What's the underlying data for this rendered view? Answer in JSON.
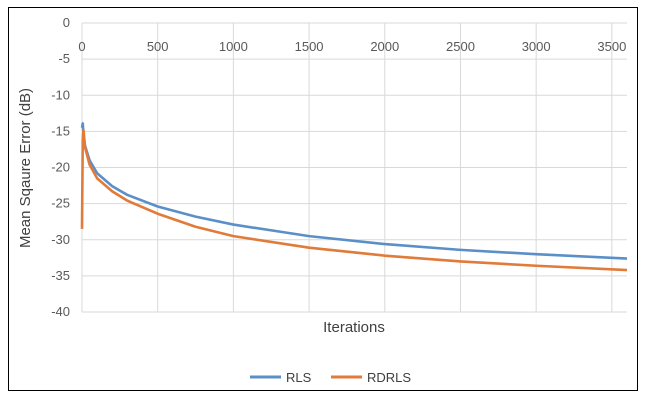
{
  "chart_data": {
    "type": "line",
    "title": "",
    "xlabel": "Iterations",
    "ylabel": "Mean Sqaure Error (dB)",
    "xlim": [
      0,
      3600
    ],
    "ylim": [
      -40,
      0
    ],
    "x_ticks": [
      "0",
      "500",
      "1000",
      "1500",
      "2000",
      "2500",
      "3000",
      "3500"
    ],
    "y_ticks": [
      "0",
      "-5",
      "-10",
      "-15",
      "-20",
      "-25",
      "-30",
      "-35",
      "-40"
    ],
    "x_axis_position": "top",
    "grid": true,
    "legend_position": "bottom",
    "series": [
      {
        "name": "RLS",
        "color": "#5B8FC8",
        "x": [
          0,
          5,
          10,
          20,
          50,
          100,
          200,
          300,
          500,
          750,
          1000,
          1500,
          2000,
          2500,
          3000,
          3600
        ],
        "y": [
          -14.5,
          -13.9,
          -15.5,
          -17.0,
          -19.0,
          -20.8,
          -22.6,
          -23.8,
          -25.4,
          -26.8,
          -27.9,
          -29.5,
          -30.6,
          -31.4,
          -32.0,
          -32.6
        ]
      },
      {
        "name": "RDRLS",
        "color": "#E07B39",
        "x": [
          0,
          5,
          10,
          20,
          50,
          100,
          200,
          300,
          500,
          750,
          1000,
          1500,
          2000,
          2500,
          3000,
          3600
        ],
        "y": [
          -28.5,
          -16.0,
          -14.8,
          -17.2,
          -19.6,
          -21.5,
          -23.3,
          -24.6,
          -26.4,
          -28.2,
          -29.5,
          -31.1,
          -32.2,
          -33.0,
          -33.6,
          -34.2
        ]
      }
    ]
  }
}
